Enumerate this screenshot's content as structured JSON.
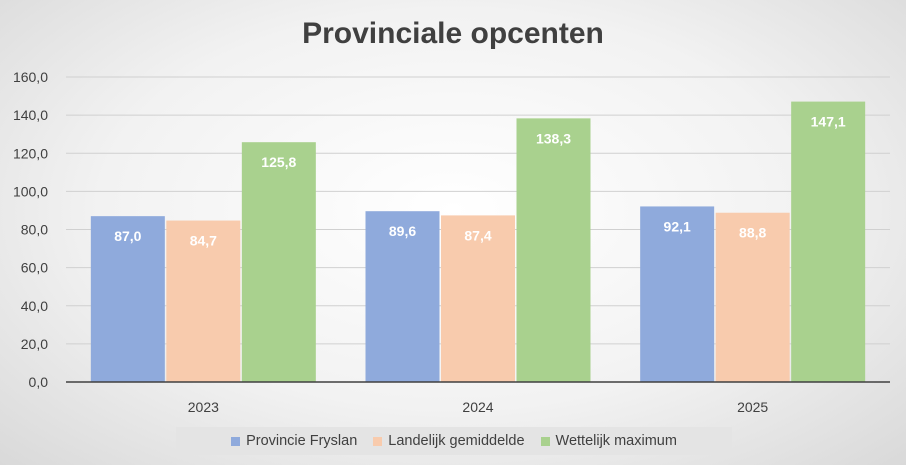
{
  "chart_data": {
    "type": "bar",
    "title": "Provinciale opcenten",
    "categories": [
      "2023",
      "2024",
      "2025"
    ],
    "series": [
      {
        "name": "Provincie Fryslan",
        "values": [
          87.0,
          89.6,
          92.1
        ],
        "labels": [
          "87,0",
          "89,6",
          "92,1"
        ],
        "color": "#8faadc"
      },
      {
        "name": "Landelijk gemiddelde",
        "values": [
          84.7,
          87.4,
          88.8
        ],
        "labels": [
          "84,7",
          "87,4",
          "88,8"
        ],
        "color": "#f8cbad"
      },
      {
        "name": "Wettelijk maximum",
        "values": [
          125.8,
          138.3,
          147.1
        ],
        "labels": [
          "125,8",
          "138,3",
          "147,1"
        ],
        "color": "#a9d18e"
      }
    ],
    "ylim": [
      0,
      160
    ],
    "yticks": [
      0,
      20,
      40,
      60,
      80,
      100,
      120,
      140,
      160
    ],
    "ytick_labels": [
      "0,0",
      "20,0",
      "40,0",
      "60,0",
      "80,0",
      "100,0",
      "120,0",
      "140,0",
      "160,0"
    ],
    "xlabel": "",
    "ylabel": "",
    "grid": true,
    "legend_position": "bottom"
  }
}
